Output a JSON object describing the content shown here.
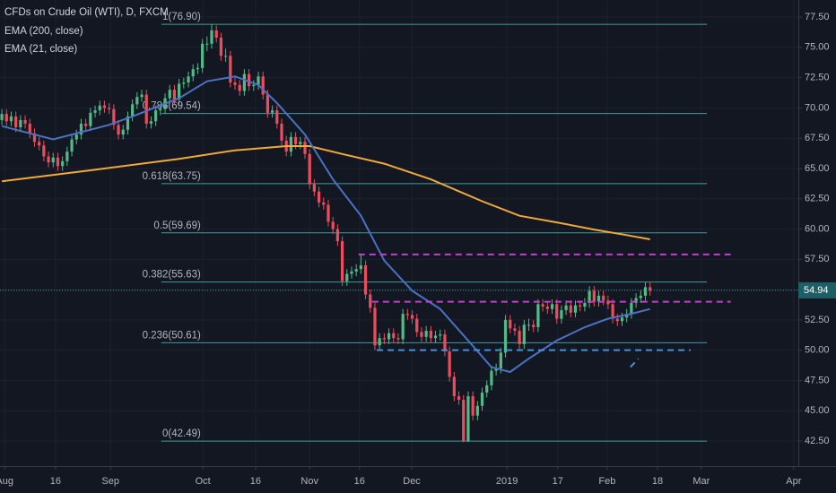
{
  "chart_data": {
    "type": "candlestick",
    "title": "CFDs on Crude Oil (WTI), D, FXCM",
    "up_color": "#53b987",
    "down_color": "#eb4d5c",
    "grid": true,
    "xlim": [
      -0.4,
      170.8
    ],
    "ylim": [
      40.43,
      78.91
    ],
    "xticks": [
      {
        "value": 0.6,
        "label": "Aug"
      },
      {
        "value": 11.5,
        "label": "16"
      },
      {
        "value": 23.3,
        "label": "Sep"
      },
      {
        "value": 43.1,
        "label": "Oct"
      },
      {
        "value": 54.4,
        "label": "16"
      },
      {
        "value": 66.0,
        "label": "Nov"
      },
      {
        "value": 76.7,
        "label": "16"
      },
      {
        "value": 87.9,
        "label": "Dec"
      },
      {
        "value": 108.3,
        "label": "2019"
      },
      {
        "value": 119.2,
        "label": "17"
      },
      {
        "value": 129.8,
        "label": "Feb"
      },
      {
        "value": 140.6,
        "label": "18"
      },
      {
        "value": 150.0,
        "label": "Mar"
      },
      {
        "value": 169.8,
        "label": "Apr"
      }
    ],
    "yticks": [
      {
        "value": 42.5,
        "label": "42.50"
      },
      {
        "value": 45,
        "label": "45.00"
      },
      {
        "value": 47.5,
        "label": "47.50"
      },
      {
        "value": 50,
        "label": "50.00"
      },
      {
        "value": 52.5,
        "label": "52.50"
      },
      {
        "value": 55,
        "label": "55.00"
      },
      {
        "value": 57.5,
        "label": "57.50"
      },
      {
        "value": 60,
        "label": "60.00"
      },
      {
        "value": 62.5,
        "label": "62.50"
      },
      {
        "value": 65,
        "label": "65.00"
      },
      {
        "value": 67.5,
        "label": "67.50"
      },
      {
        "value": 70,
        "label": "70.00"
      },
      {
        "value": 72.5,
        "label": "72.50"
      },
      {
        "value": 75,
        "label": "75.00"
      },
      {
        "value": 77.5,
        "label": "77.50"
      }
    ],
    "last_price": 54.94,
    "last_price_color": "#2aa6a6",
    "ohlc": [
      [
        69.0,
        69.9,
        68.6,
        69.5
      ],
      [
        69.5,
        69.9,
        68.5,
        68.9
      ],
      [
        68.9,
        69.7,
        68.5,
        69.3
      ],
      [
        69.3,
        69.7,
        68.0,
        68.4
      ],
      [
        68.4,
        69.4,
        68.0,
        69.0
      ],
      [
        69.0,
        69.4,
        68.3,
        68.7
      ],
      [
        68.7,
        69.1,
        67.5,
        67.9
      ],
      [
        67.9,
        68.3,
        66.8,
        67.2
      ],
      [
        67.2,
        67.6,
        66.5,
        66.9
      ],
      [
        66.9,
        67.3,
        65.6,
        66.0
      ],
      [
        66.0,
        66.4,
        65.1,
        65.5
      ],
      [
        65.5,
        66.3,
        65.1,
        65.9
      ],
      [
        65.9,
        66.3,
        64.8,
        65.2
      ],
      [
        65.2,
        66.0,
        64.8,
        65.6
      ],
      [
        65.6,
        66.8,
        65.2,
        66.4
      ],
      [
        66.4,
        67.8,
        66.0,
        67.4
      ],
      [
        67.4,
        68.2,
        67.0,
        67.8
      ],
      [
        67.8,
        69.1,
        67.4,
        68.7
      ],
      [
        68.7,
        69.1,
        68.1,
        68.5
      ],
      [
        68.5,
        70.0,
        68.1,
        69.6
      ],
      [
        69.6,
        70.2,
        69.2,
        69.8
      ],
      [
        69.8,
        70.6,
        69.4,
        70.2
      ],
      [
        70.2,
        70.6,
        69.6,
        70.0
      ],
      [
        70.0,
        70.4,
        69.5,
        69.9
      ],
      [
        69.9,
        70.3,
        68.2,
        68.6
      ],
      [
        68.6,
        69.0,
        67.4,
        67.8
      ],
      [
        67.8,
        68.6,
        67.4,
        68.2
      ],
      [
        68.2,
        69.7,
        67.8,
        69.3
      ],
      [
        69.3,
        70.7,
        68.9,
        70.3
      ],
      [
        70.3,
        71.3,
        69.9,
        70.9
      ],
      [
        70.9,
        71.5,
        70.5,
        71.1
      ],
      [
        71.1,
        71.5,
        68.3,
        68.7
      ],
      [
        68.7,
        69.3,
        68.3,
        68.9
      ],
      [
        68.9,
        70.2,
        68.5,
        69.8
      ],
      [
        69.8,
        70.3,
        69.4,
        69.9
      ],
      [
        69.9,
        71.2,
        69.5,
        70.8
      ],
      [
        70.8,
        71.9,
        70.4,
        71.5
      ],
      [
        71.5,
        71.9,
        70.3,
        70.7
      ],
      [
        70.7,
        72.4,
        70.3,
        72.0
      ],
      [
        72.0,
        72.5,
        71.6,
        72.1
      ],
      [
        72.1,
        73.0,
        71.7,
        72.6
      ],
      [
        72.6,
        73.6,
        72.2,
        73.2
      ],
      [
        73.2,
        73.7,
        72.8,
        73.3
      ],
      [
        73.3,
        75.7,
        72.9,
        75.3
      ],
      [
        75.3,
        75.9,
        74.7,
        75.3
      ],
      [
        75.3,
        76.9,
        74.9,
        76.4
      ],
      [
        76.4,
        76.8,
        75.4,
        75.8
      ],
      [
        75.8,
        76.2,
        73.9,
        74.3
      ],
      [
        74.3,
        74.9,
        73.8,
        74.3
      ],
      [
        74.3,
        74.7,
        71.7,
        72.1
      ],
      [
        72.1,
        72.5,
        71.5,
        71.9
      ],
      [
        71.9,
        72.3,
        71.0,
        71.4
      ],
      [
        71.4,
        73.2,
        71.0,
        72.8
      ],
      [
        72.8,
        73.2,
        71.4,
        71.8
      ],
      [
        71.8,
        72.3,
        71.4,
        71.9
      ],
      [
        71.9,
        73.0,
        71.5,
        72.6
      ],
      [
        72.6,
        73.0,
        70.7,
        71.1
      ],
      [
        71.1,
        71.5,
        69.2,
        69.6
      ],
      [
        69.6,
        70.2,
        69.2,
        69.8
      ],
      [
        69.8,
        70.2,
        68.3,
        68.7
      ],
      [
        68.7,
        69.1,
        66.9,
        67.3
      ],
      [
        67.3,
        67.7,
        66.0,
        66.4
      ],
      [
        66.4,
        68.0,
        66.0,
        67.6
      ],
      [
        67.6,
        68.0,
        66.6,
        67.0
      ],
      [
        67.0,
        67.6,
        66.6,
        67.2
      ],
      [
        67.2,
        67.6,
        65.8,
        66.2
      ],
      [
        66.2,
        66.6,
        63.3,
        63.7
      ],
      [
        63.7,
        64.1,
        62.7,
        63.1
      ],
      [
        63.1,
        63.5,
        61.8,
        62.2
      ],
      [
        62.2,
        62.6,
        61.6,
        62.0
      ],
      [
        62.0,
        62.4,
        60.2,
        60.6
      ],
      [
        60.6,
        61.0,
        59.6,
        60.0
      ],
      [
        60.0,
        60.4,
        58.6,
        59.0
      ],
      [
        59.0,
        59.4,
        55.3,
        55.7
      ],
      [
        55.7,
        56.7,
        55.3,
        56.3
      ],
      [
        56.3,
        56.9,
        55.9,
        56.5
      ],
      [
        56.5,
        57.1,
        56.1,
        56.7
      ],
      [
        56.7,
        57.9,
        56.3,
        57.0
      ],
      [
        57.0,
        57.4,
        54.2,
        54.6
      ],
      [
        54.6,
        55.0,
        53.1,
        53.5
      ],
      [
        53.5,
        53.9,
        50.0,
        50.4
      ],
      [
        50.4,
        51.4,
        50.0,
        51.0
      ],
      [
        51.0,
        51.4,
        50.5,
        50.9
      ],
      [
        50.9,
        51.8,
        50.5,
        51.4
      ],
      [
        51.4,
        51.8,
        50.6,
        51.0
      ],
      [
        51.0,
        51.4,
        50.5,
        50.9
      ],
      [
        50.9,
        53.4,
        50.5,
        53.0
      ],
      [
        53.0,
        53.4,
        52.5,
        52.9
      ],
      [
        52.9,
        53.3,
        52.2,
        52.6
      ],
      [
        52.6,
        53.0,
        51.1,
        51.5
      ],
      [
        51.5,
        51.9,
        50.7,
        51.1
      ],
      [
        51.1,
        52.0,
        50.7,
        51.6
      ],
      [
        51.6,
        52.0,
        50.6,
        51.0
      ],
      [
        51.0,
        51.6,
        50.6,
        51.2
      ],
      [
        51.2,
        51.7,
        50.8,
        51.3
      ],
      [
        51.3,
        51.7,
        49.5,
        49.9
      ],
      [
        49.9,
        50.3,
        47.4,
        47.8
      ],
      [
        47.8,
        48.2,
        45.8,
        46.2
      ],
      [
        46.2,
        46.6,
        45.5,
        45.9
      ],
      [
        45.9,
        46.3,
        42.4,
        42.5
      ],
      [
        42.5,
        46.6,
        42.4,
        46.2
      ],
      [
        46.2,
        46.6,
        44.2,
        44.6
      ],
      [
        44.6,
        45.8,
        44.2,
        45.4
      ],
      [
        45.4,
        46.9,
        45.0,
        46.5
      ],
      [
        46.5,
        47.5,
        46.1,
        47.1
      ],
      [
        47.1,
        48.7,
        46.7,
        48.3
      ],
      [
        48.3,
        48.9,
        47.9,
        48.5
      ],
      [
        48.5,
        50.2,
        48.1,
        49.8
      ],
      [
        49.8,
        52.9,
        49.4,
        52.5
      ],
      [
        52.5,
        52.9,
        51.4,
        51.8
      ],
      [
        51.8,
        52.2,
        51.2,
        51.6
      ],
      [
        51.6,
        52.0,
        50.1,
        50.5
      ],
      [
        50.5,
        52.5,
        50.1,
        52.1
      ],
      [
        52.1,
        52.6,
        51.6,
        52.1
      ],
      [
        52.1,
        52.5,
        51.5,
        51.9
      ],
      [
        51.9,
        54.2,
        51.5,
        53.8
      ],
      [
        53.8,
        54.2,
        53.2,
        53.6
      ],
      [
        53.6,
        54.0,
        53.0,
        53.4
      ],
      [
        53.4,
        54.2,
        53.0,
        53.8
      ],
      [
        53.8,
        54.2,
        52.2,
        52.6
      ],
      [
        52.6,
        53.7,
        52.2,
        53.3
      ],
      [
        53.3,
        54.1,
        52.9,
        53.7
      ],
      [
        53.7,
        54.1,
        52.7,
        53.1
      ],
      [
        53.1,
        54.1,
        52.7,
        53.7
      ],
      [
        53.7,
        54.1,
        53.2,
        53.6
      ],
      [
        53.6,
        54.3,
        53.2,
        53.9
      ],
      [
        53.9,
        55.3,
        53.5,
        54.9
      ],
      [
        54.9,
        55.3,
        53.6,
        54.0
      ],
      [
        54.0,
        54.9,
        53.6,
        54.5
      ],
      [
        54.5,
        54.9,
        53.7,
        54.1
      ],
      [
        54.1,
        54.5,
        53.4,
        53.8
      ],
      [
        53.8,
        54.2,
        52.2,
        52.6
      ],
      [
        52.6,
        53.0,
        52.0,
        52.4
      ],
      [
        52.4,
        53.1,
        52.0,
        52.7
      ],
      [
        52.7,
        53.4,
        52.3,
        53.0
      ],
      [
        53.0,
        54.3,
        52.6,
        53.9
      ],
      [
        53.9,
        54.7,
        53.5,
        54.3
      ],
      [
        54.3,
        54.9,
        53.9,
        54.5
      ],
      [
        54.5,
        55.6,
        54.1,
        55.2
      ],
      [
        55.2,
        55.6,
        54.5,
        54.9
      ]
    ],
    "series": [
      {
        "name": "EMA (200, close)",
        "color": "#f0a93b",
        "x": [
          0,
          19,
          38,
          50,
          61,
          66,
          73,
          82,
          92,
          103,
          111,
          119,
          127,
          134,
          139
        ],
        "values": [
          63.95,
          64.85,
          65.8,
          66.5,
          66.85,
          66.85,
          66.2,
          65.4,
          64.1,
          62.3,
          61.1,
          60.55,
          59.96,
          59.5,
          59.15
        ]
      },
      {
        "name": "EMA (21, close)",
        "color": "#4a72c4",
        "x": [
          0,
          11,
          15,
          23,
          28,
          38,
          44,
          50,
          55,
          59,
          65,
          71,
          77,
          82,
          88,
          94,
          100,
          105,
          109,
          113,
          119,
          125,
          130,
          135,
          139
        ],
        "values": [
          68.5,
          67.4,
          67.8,
          68.6,
          69.3,
          70.8,
          72.2,
          72.6,
          71.9,
          70.4,
          67.8,
          64.1,
          61.1,
          57.4,
          54.9,
          53.4,
          50.8,
          48.6,
          48.2,
          49.3,
          50.8,
          51.9,
          52.6,
          53.0,
          53.4
        ]
      }
    ],
    "fib_color": "#3e9e9e",
    "fib_xlim": [
      34.2,
      151.2
    ],
    "fib_levels": [
      {
        "label": "1(76.90)",
        "value": 76.9
      },
      {
        "label": "0.786(69.54)",
        "value": 69.54
      },
      {
        "label": "0.618(63.75)",
        "value": 63.75
      },
      {
        "label": "0.5(59.69)",
        "value": 59.69
      },
      {
        "label": "0.382(55.63)",
        "value": 55.63
      },
      {
        "label": "0.236(50.61)",
        "value": 50.61
      },
      {
        "label": "0(42.49)",
        "value": 42.49
      }
    ],
    "drawn_lines": [
      {
        "color": "#c43ed0",
        "x": [
          76.5,
          156.3
        ],
        "values": [
          57.9,
          57.9
        ]
      },
      {
        "color": "#c43ed0",
        "x": [
          79.4,
          156.3
        ],
        "values": [
          54.0,
          54.0
        ]
      },
      {
        "color": "#4a8fd0",
        "x": [
          80.4,
          147.7
        ],
        "values": [
          50.0,
          50.0
        ]
      },
      {
        "color": "#4a8fd0",
        "x": [
          134.8,
          136.5
        ],
        "values": [
          48.6,
          49.3
        ]
      }
    ]
  }
}
